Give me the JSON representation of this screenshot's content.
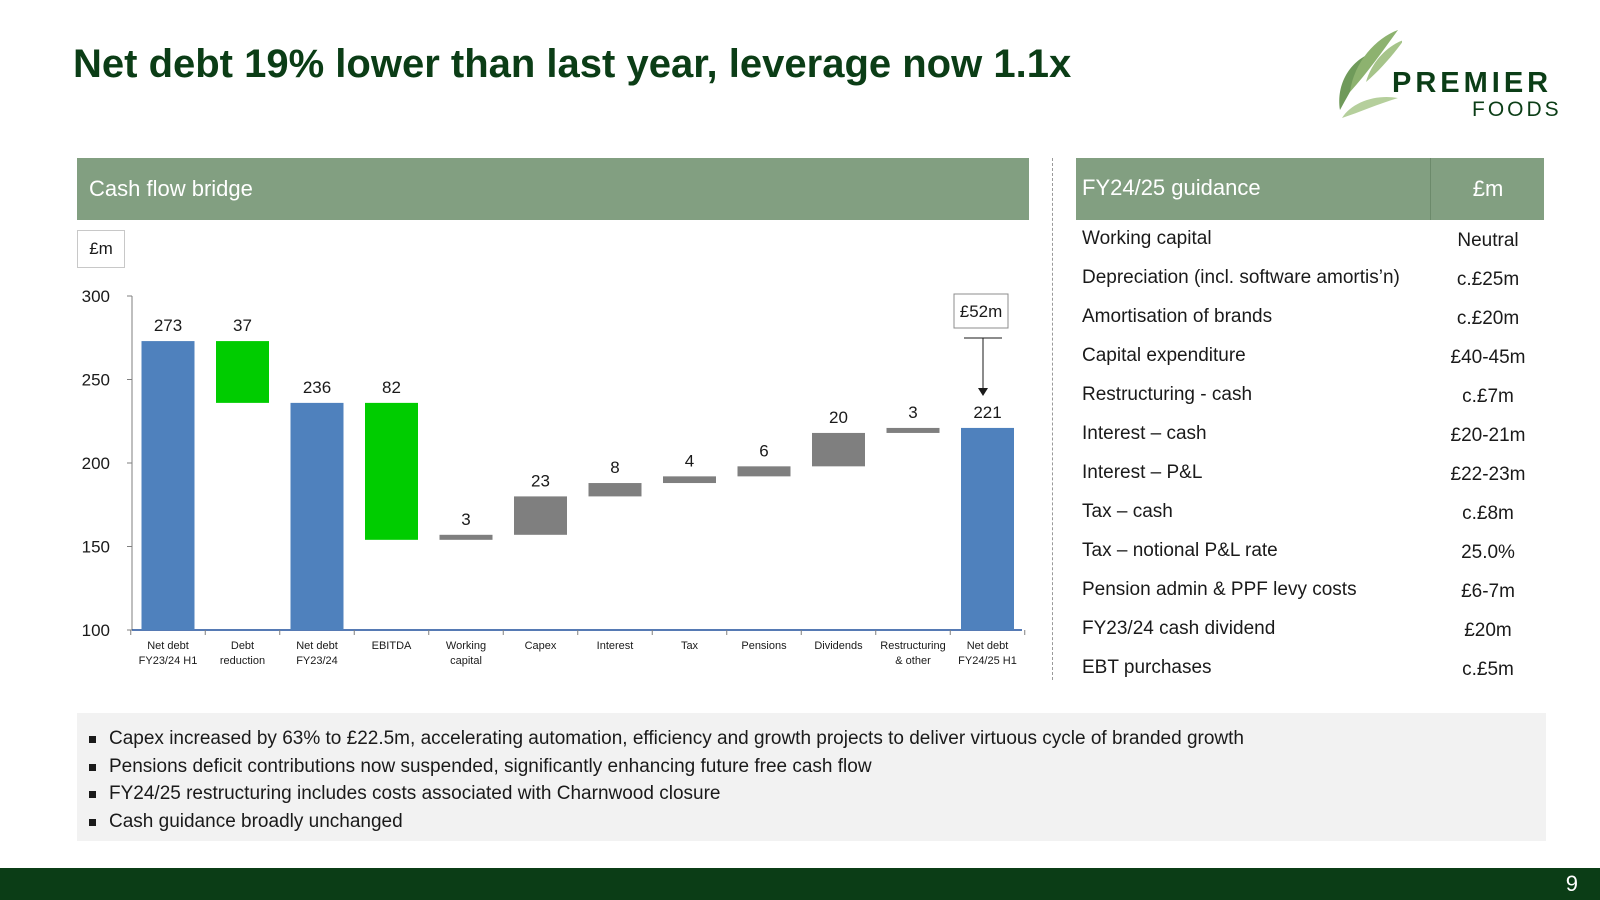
{
  "title": "Net debt 19% lower than last year, leverage now 1.1x",
  "logo": {
    "line1": "PREMIER",
    "line2": "FOODS"
  },
  "cash_flow": {
    "header": "Cash flow bridge",
    "unit": "£m",
    "callout": "£52m"
  },
  "chart_data": {
    "type": "waterfall",
    "title": "Cash flow bridge",
    "ylabel": "£m",
    "ylim": [
      100,
      300
    ],
    "yticks": [
      "100",
      "150",
      "200",
      "250",
      "300"
    ],
    "categories": [
      "Net debt\nFY23/24 H1",
      "Debt\nreduction",
      "Net debt\nFY23/24",
      "EBITDA",
      "Working\ncapital",
      "Capex",
      "Interest",
      "Tax",
      "Pensions",
      "Dividends",
      "Restructuring\n& other",
      "Net debt\nFY24/25 H1"
    ],
    "bars": [
      {
        "label": "273",
        "low": 100,
        "high": 273,
        "kind": "total"
      },
      {
        "label": "37",
        "low": 236,
        "high": 273,
        "kind": "decrease"
      },
      {
        "label": "236",
        "low": 100,
        "high": 236,
        "kind": "total"
      },
      {
        "label": "82",
        "low": 154,
        "high": 236,
        "kind": "decrease"
      },
      {
        "label": "3",
        "low": 154,
        "high": 157,
        "kind": "increase"
      },
      {
        "label": "23",
        "low": 157,
        "high": 180,
        "kind": "increase"
      },
      {
        "label": "8",
        "low": 180,
        "high": 188,
        "kind": "increase"
      },
      {
        "label": "4",
        "low": 188,
        "high": 192,
        "kind": "increase"
      },
      {
        "label": "6",
        "low": 192,
        "high": 198,
        "kind": "increase"
      },
      {
        "label": "20",
        "low": 198,
        "high": 218,
        "kind": "increase"
      },
      {
        "label": "3",
        "low": 218,
        "high": 221,
        "kind": "increase"
      },
      {
        "label": "221",
        "low": 100,
        "high": 221,
        "kind": "total"
      }
    ],
    "colors": {
      "total": "#4f81bd",
      "decrease": "#00cc00",
      "increase": "#7f7f7f"
    }
  },
  "guidance": {
    "header_label": "FY24/25 guidance",
    "header_unit": "£m",
    "rows": [
      {
        "label": "Working capital",
        "value": "Neutral"
      },
      {
        "label": "Depreciation (incl. software amortis’n)",
        "value": "c.£25m"
      },
      {
        "label": "Amortisation of brands",
        "value": "c.£20m"
      },
      {
        "label": "Capital expenditure",
        "value": "£40-45m"
      },
      {
        "label": "Restructuring - cash",
        "value": "c.£7m"
      },
      {
        "label": "Interest – cash",
        "value": "£20-21m"
      },
      {
        "label": "Interest – P&L",
        "value": "£22-23m"
      },
      {
        "label": "Tax – cash",
        "value": "c.£8m"
      },
      {
        "label": "Tax – notional P&L rate",
        "value": "25.0%"
      },
      {
        "label": "Pension admin & PPF levy costs",
        "value": "£6-7m"
      },
      {
        "label": "FY23/24 cash dividend",
        "value": "£20m"
      },
      {
        "label": "EBT purchases",
        "value": "c.£5m"
      }
    ]
  },
  "bullets": [
    "Capex increased by 63% to £22.5m, accelerating automation, efficiency and growth projects to deliver virtuous cycle of branded growth",
    "Pensions deficit contributions now suspended, significantly enhancing future free cash flow",
    "FY24/25 restructuring includes costs associated with Charnwood closure",
    "Cash guidance broadly unchanged"
  ],
  "page_number": "9",
  "colors": {
    "brand_dark": "#0b3d16",
    "header_green": "#829f81",
    "bullet_bg": "#f2f2f2"
  }
}
